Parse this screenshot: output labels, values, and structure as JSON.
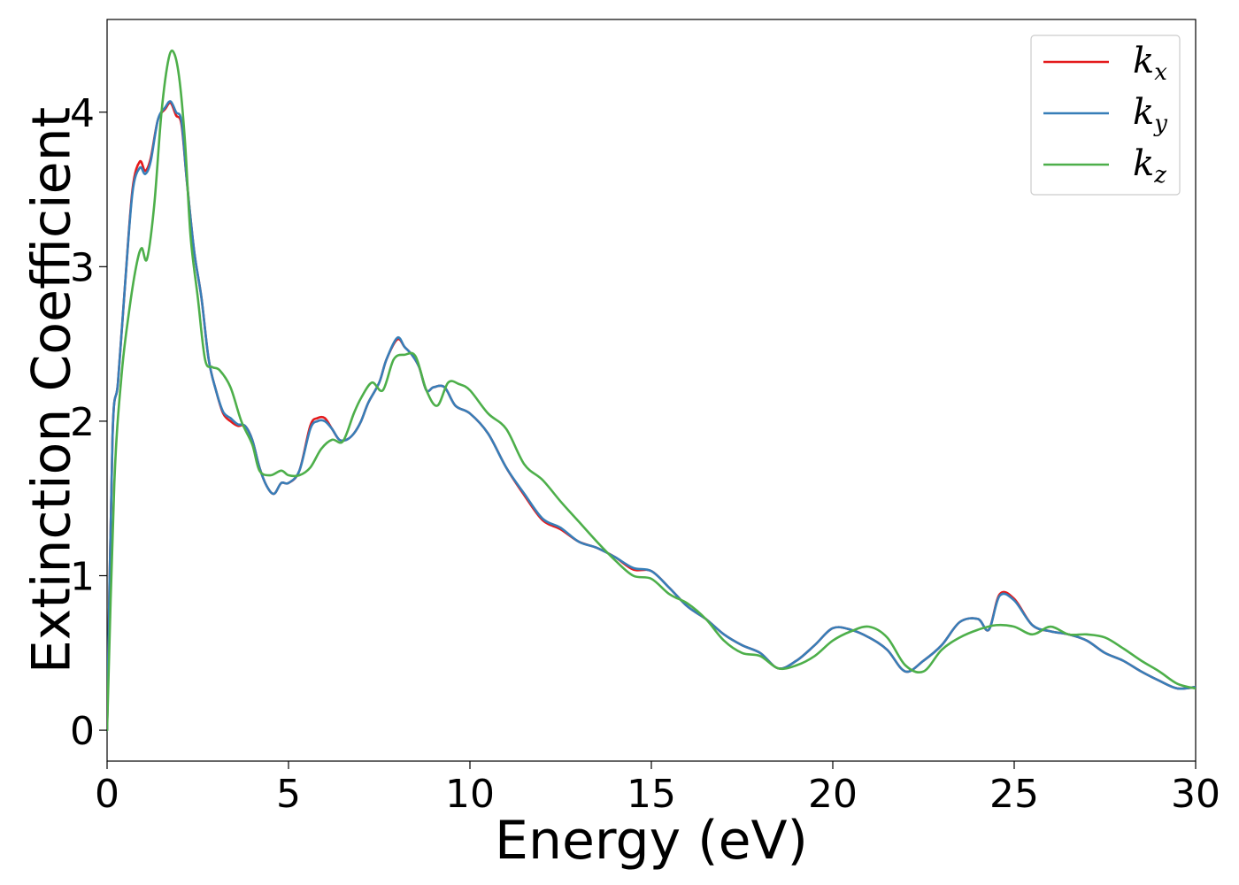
{
  "chart_data": {
    "type": "line",
    "title": "",
    "xlabel": "Energy (eV)",
    "ylabel": "Extinction Coefficient",
    "xlim": [
      0,
      30
    ],
    "ylim": [
      -0.2,
      4.6
    ],
    "xticks": [
      0,
      5,
      10,
      15,
      20,
      25,
      30
    ],
    "yticks": [
      0,
      1,
      2,
      3,
      4
    ],
    "grid": false,
    "legend_position": "top-right",
    "series": [
      {
        "name": "k_x",
        "legend_base": "k",
        "legend_sub": "x",
        "color": "#e41a1c",
        "x": [
          0,
          0.15,
          0.3,
          0.5,
          0.7,
          0.9,
          1.05,
          1.2,
          1.4,
          1.6,
          1.75,
          1.9,
          2.05,
          2.2,
          2.4,
          2.6,
          2.8,
          3.0,
          3.2,
          3.4,
          3.6,
          3.8,
          4.0,
          4.2,
          4.4,
          4.6,
          4.8,
          5.0,
          5.3,
          5.6,
          5.8,
          6.0,
          6.2,
          6.4,
          6.6,
          6.8,
          7.0,
          7.2,
          7.5,
          7.7,
          8.0,
          8.2,
          8.4,
          8.6,
          8.8,
          9.0,
          9.3,
          9.6,
          10.0,
          10.5,
          11.0,
          11.5,
          12.0,
          12.5,
          13.0,
          13.5,
          14.0,
          14.5,
          15.0,
          15.5,
          16.0,
          16.5,
          17.0,
          17.5,
          18.0,
          18.5,
          19.0,
          19.5,
          20.0,
          20.5,
          21.0,
          21.5,
          22.0,
          22.5,
          23.0,
          23.5,
          24.0,
          24.3,
          24.6,
          25.0,
          25.5,
          26.0,
          26.5,
          27.0,
          27.5,
          28.0,
          28.5,
          29.0,
          29.5,
          30.0
        ],
        "values": [
          0.0,
          1.9,
          2.25,
          2.9,
          3.5,
          3.68,
          3.62,
          3.7,
          3.95,
          4.02,
          4.06,
          3.98,
          3.92,
          3.55,
          3.1,
          2.8,
          2.4,
          2.2,
          2.05,
          2.0,
          1.97,
          1.97,
          1.88,
          1.7,
          1.58,
          1.53,
          1.6,
          1.6,
          1.68,
          1.97,
          2.02,
          2.02,
          1.95,
          1.88,
          1.88,
          1.92,
          2.0,
          2.12,
          2.25,
          2.4,
          2.53,
          2.48,
          2.43,
          2.35,
          2.2,
          2.22,
          2.22,
          2.1,
          2.05,
          1.92,
          1.7,
          1.52,
          1.36,
          1.3,
          1.22,
          1.18,
          1.12,
          1.04,
          1.03,
          0.92,
          0.8,
          0.72,
          0.62,
          0.55,
          0.5,
          0.4,
          0.45,
          0.55,
          0.66,
          0.65,
          0.6,
          0.52,
          0.38,
          0.45,
          0.55,
          0.7,
          0.72,
          0.65,
          0.88,
          0.85,
          0.68,
          0.64,
          0.62,
          0.58,
          0.5,
          0.45,
          0.38,
          0.32,
          0.27,
          0.28
        ]
      },
      {
        "name": "k_y",
        "legend_base": "k",
        "legend_sub": "y",
        "color": "#377eb8",
        "x": [
          0,
          0.15,
          0.3,
          0.5,
          0.7,
          0.9,
          1.05,
          1.2,
          1.4,
          1.6,
          1.75,
          1.9,
          2.05,
          2.2,
          2.4,
          2.6,
          2.8,
          3.0,
          3.2,
          3.4,
          3.6,
          3.8,
          4.0,
          4.2,
          4.4,
          4.6,
          4.8,
          5.0,
          5.3,
          5.6,
          5.8,
          6.0,
          6.2,
          6.4,
          6.6,
          6.8,
          7.0,
          7.2,
          7.5,
          7.7,
          8.0,
          8.2,
          8.4,
          8.6,
          8.8,
          9.0,
          9.3,
          9.6,
          10.0,
          10.5,
          11.0,
          11.5,
          12.0,
          12.5,
          13.0,
          13.5,
          14.0,
          14.5,
          15.0,
          15.5,
          16.0,
          16.5,
          17.0,
          17.5,
          18.0,
          18.5,
          19.0,
          19.5,
          20.0,
          20.5,
          21.0,
          21.5,
          22.0,
          22.5,
          23.0,
          23.5,
          24.0,
          24.3,
          24.6,
          25.0,
          25.5,
          26.0,
          26.5,
          27.0,
          27.5,
          28.0,
          28.5,
          29.0,
          29.5,
          30.0
        ],
        "values": [
          0.0,
          1.9,
          2.25,
          2.9,
          3.48,
          3.64,
          3.6,
          3.68,
          3.95,
          4.03,
          4.07,
          4.0,
          3.94,
          3.55,
          3.1,
          2.8,
          2.4,
          2.2,
          2.06,
          2.02,
          1.98,
          1.97,
          1.88,
          1.7,
          1.58,
          1.53,
          1.6,
          1.6,
          1.68,
          1.95,
          2.0,
          2.0,
          1.95,
          1.88,
          1.88,
          1.92,
          2.0,
          2.12,
          2.25,
          2.4,
          2.54,
          2.48,
          2.43,
          2.35,
          2.2,
          2.22,
          2.22,
          2.1,
          2.05,
          1.92,
          1.7,
          1.53,
          1.37,
          1.31,
          1.22,
          1.18,
          1.12,
          1.05,
          1.03,
          0.92,
          0.8,
          0.72,
          0.62,
          0.55,
          0.5,
          0.4,
          0.45,
          0.55,
          0.66,
          0.65,
          0.6,
          0.52,
          0.38,
          0.45,
          0.55,
          0.7,
          0.72,
          0.65,
          0.87,
          0.84,
          0.68,
          0.64,
          0.62,
          0.58,
          0.5,
          0.45,
          0.38,
          0.32,
          0.27,
          0.28
        ]
      },
      {
        "name": "k_z",
        "legend_base": "k",
        "legend_sub": "z",
        "color": "#4daf4a",
        "x": [
          0,
          0.2,
          0.4,
          0.6,
          0.8,
          0.95,
          1.1,
          1.3,
          1.5,
          1.7,
          1.85,
          2.0,
          2.15,
          2.3,
          2.5,
          2.7,
          2.9,
          3.1,
          3.4,
          3.7,
          4.0,
          4.2,
          4.5,
          4.8,
          5.0,
          5.3,
          5.6,
          5.9,
          6.2,
          6.5,
          6.8,
          7.0,
          7.3,
          7.6,
          7.9,
          8.2,
          8.5,
          8.8,
          9.1,
          9.4,
          9.7,
          10.0,
          10.5,
          11.0,
          11.5,
          12.0,
          12.5,
          13.0,
          13.5,
          14.0,
          14.5,
          15.0,
          15.5,
          16.0,
          16.5,
          17.0,
          17.5,
          18.0,
          18.5,
          19.0,
          19.5,
          20.0,
          20.5,
          21.0,
          21.5,
          22.0,
          22.5,
          23.0,
          23.5,
          24.0,
          24.5,
          25.0,
          25.5,
          26.0,
          26.5,
          27.0,
          27.5,
          28.0,
          28.5,
          29.0,
          29.5,
          30.0
        ],
        "values": [
          0.0,
          1.6,
          2.3,
          2.7,
          3.0,
          3.12,
          3.05,
          3.4,
          4.0,
          4.35,
          4.38,
          4.2,
          3.8,
          3.2,
          2.8,
          2.4,
          2.35,
          2.33,
          2.22,
          2.0,
          1.85,
          1.68,
          1.65,
          1.68,
          1.65,
          1.65,
          1.7,
          1.82,
          1.88,
          1.87,
          2.05,
          2.15,
          2.25,
          2.2,
          2.4,
          2.43,
          2.42,
          2.2,
          2.1,
          2.25,
          2.24,
          2.2,
          2.05,
          1.95,
          1.72,
          1.62,
          1.48,
          1.35,
          1.22,
          1.1,
          1.0,
          0.98,
          0.88,
          0.82,
          0.72,
          0.58,
          0.5,
          0.48,
          0.4,
          0.42,
          0.48,
          0.58,
          0.64,
          0.67,
          0.6,
          0.42,
          0.38,
          0.52,
          0.6,
          0.65,
          0.68,
          0.67,
          0.62,
          0.67,
          0.62,
          0.62,
          0.6,
          0.53,
          0.45,
          0.38,
          0.3,
          0.27
        ]
      }
    ]
  }
}
